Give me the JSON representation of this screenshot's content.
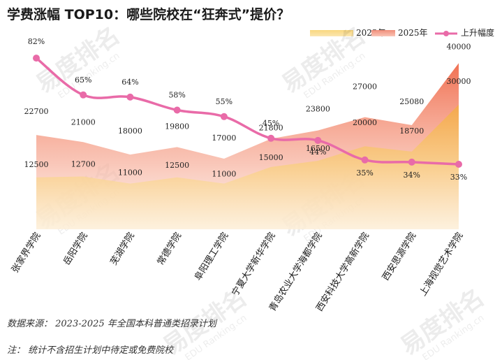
{
  "title": "学费涨幅 TOP10：哪些院校在“狂奔式”提价？",
  "legend": {
    "s2023": "2023年",
    "s2025": "2025年",
    "rise": "上升幅度"
  },
  "colors": {
    "s2023": "#f7c56a",
    "s2025": "#f3a08c",
    "rise": "#e96ba8"
  },
  "chart_data": {
    "type": "area",
    "categories": [
      "张家界学院",
      "岳阳学院",
      "芜湖学院",
      "常德学院",
      "阜阳理工学院",
      "宁夏大学新华学院",
      "青岛农业大学海都学院",
      "西安科技大学高新学院",
      "西安思源学院",
      "上海视觉艺术学院"
    ],
    "series": [
      {
        "name": "2023年",
        "values": [
          12500,
          12700,
          11000,
          12500,
          11000,
          15000,
          16500,
          20000,
          18700,
          30000
        ]
      },
      {
        "name": "2025年",
        "values": [
          22700,
          21000,
          18000,
          19800,
          17000,
          21800,
          23800,
          27000,
          25080,
          40000
        ]
      },
      {
        "name": "上升幅度",
        "values": [
          82,
          65,
          64,
          58,
          55,
          45,
          44,
          35,
          34,
          33
        ],
        "unit": "%"
      }
    ],
    "value_labels_2023": [
      "12500",
      "12700",
      "11000",
      "12500",
      "11000",
      "15000",
      "16500",
      "20000",
      "18700",
      "30000"
    ],
    "value_labels_2025": [
      "22700",
      "21000",
      "18000",
      "19800",
      "17000",
      "21800",
      "23800",
      "27000",
      "25080",
      "40000"
    ],
    "rise_labels": [
      "82%",
      "65%",
      "64%",
      "58%",
      "55%",
      "45%",
      "44%",
      "35%",
      "34%",
      "33%"
    ],
    "legend_position": "top-right"
  },
  "source": "数据来源：  2023-2025 年全国本科普通类招录计划",
  "note": "注：  统计不含招生计划中待定或免费院校",
  "watermark": {
    "brand": "易度排名",
    "sub": "EDU Ranking.cn"
  }
}
